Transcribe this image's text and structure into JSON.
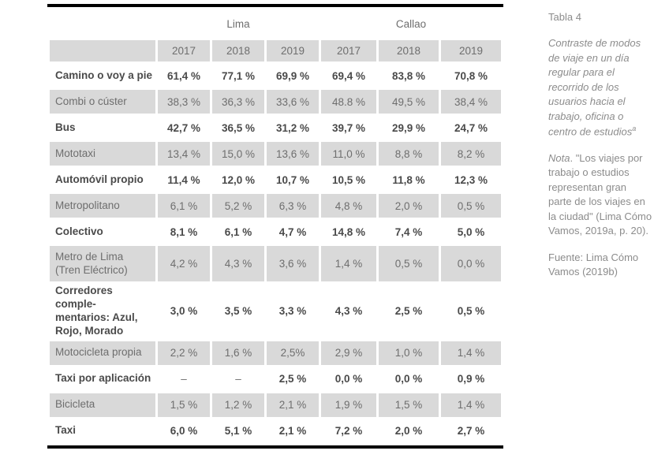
{
  "table": {
    "groups": [
      {
        "label": "Lima"
      },
      {
        "label": "Callao"
      }
    ],
    "years": [
      "2017",
      "2018",
      "2019",
      "2017",
      "2018",
      "2019"
    ],
    "rows": [
      {
        "label": "Camino o voy a pie",
        "shaded": false,
        "values": [
          "61,4 %",
          "77,1 %",
          "69,9 %",
          "69,4 %",
          "83,8 %",
          "70,8 %"
        ]
      },
      {
        "label": "Combi o cúster",
        "shaded": true,
        "values": [
          "38,3 %",
          "36,3 %",
          "33,6 %",
          "48.8 %",
          "49,5 %",
          "38,4 %"
        ]
      },
      {
        "label": "Bus",
        "shaded": false,
        "values": [
          "42,7 %",
          "36,5 %",
          "31,2 %",
          "39,7 %",
          "29,9 %",
          "24,7 %"
        ]
      },
      {
        "label": "Mototaxi",
        "shaded": true,
        "values": [
          "13,4 %",
          "15,0 %",
          "13,6 %",
          "11,0 %",
          "8,8 %",
          "8,2 %"
        ]
      },
      {
        "label": "Automóvil propio",
        "shaded": false,
        "values": [
          "11,4 %",
          "12,0 %",
          "10,7 %",
          "10,5 %",
          "11,8 %",
          "12,3 %"
        ]
      },
      {
        "label": "Metropolitano",
        "shaded": true,
        "values": [
          "6,1 %",
          "5,2 %",
          "6,3 %",
          "4,8 %",
          "2,0 %",
          "0,5 %"
        ]
      },
      {
        "label": "Colectivo",
        "shaded": false,
        "values": [
          "8,1 %",
          "6,1 %",
          "4,7 %",
          "14,8 %",
          "7,4 %",
          "5,0 %"
        ]
      },
      {
        "label": "Metro de Lima\n(Tren Eléctrico)",
        "shaded": true,
        "tall": "metro",
        "values": [
          "4,2 %",
          "4,3 %",
          "3,6 %",
          "1,4 %",
          "0,5 %",
          "0,0 %"
        ]
      },
      {
        "label": "Corredores comple-\nmentarios: Azul,\nRojo, Morado",
        "shaded": false,
        "tall": "corredores",
        "values": [
          "3,0 %",
          "3,5 %",
          "3,3 %",
          "4,3 %",
          "2,5 %",
          "0,5 %"
        ]
      },
      {
        "label": "Motocicleta propia",
        "shaded": true,
        "values": [
          "2,2 %",
          "1,6 %",
          "2,5%",
          "2,9 %",
          "1,0 %",
          "1,4 %"
        ]
      },
      {
        "label": "Taxi por aplicación",
        "shaded": false,
        "values": [
          "–",
          "–",
          "2,5 %",
          "0,0 %",
          "0,0 %",
          "0,9 %"
        ]
      },
      {
        "label": "Bicicleta",
        "shaded": true,
        "values": [
          "1,5 %",
          "1,2 %",
          "2,1 %",
          "1,9 %",
          "1,5 %",
          "1,4 %"
        ]
      },
      {
        "label": "Taxi",
        "shaded": false,
        "values": [
          "6,0 %",
          "5,1 %",
          "2,1 %",
          "7,2 %",
          "2,0 %",
          "2,7 %"
        ]
      }
    ]
  },
  "sidebar": {
    "table_number": "Tabla 4",
    "caption": "Contraste de modos de viaje en un día regular para el recorrido de los usuarios hacia el trabajo, oficina o centro de estudios",
    "caption_marker": "a",
    "note_label": "Nota",
    "note_rest": ". \"Los viajes por trabajo o estudios representan gran parte de los viajes en la ciudad\" (Lima Cómo Vamos, 2019a, p. 20).",
    "source": "Fuente: Lima Cómo Vamos (2019b)"
  },
  "colors": {
    "shaded_cell": "#d9d9d9",
    "regular_text": "#6e6e6e",
    "bold_text": "#4a4a4a",
    "sidebar_text": "#8c8c8c",
    "border": "#000000"
  }
}
